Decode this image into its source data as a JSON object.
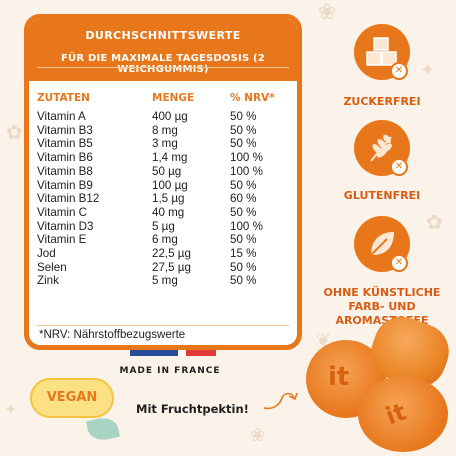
{
  "panel": {
    "title": "DURCHSCHNITTSWERTE",
    "subtitle": "FÜR DIE MAXIMALE TAGESDOSIS (2 WEICHGUMMIS)",
    "columns": [
      "ZUTATEN",
      "MENGE",
      "% NRV*"
    ],
    "rows": [
      [
        "Vitamin A",
        "400 µg",
        "50 %"
      ],
      [
        "Vitamin B3",
        "8 mg",
        "50 %"
      ],
      [
        "Vitamin B5",
        "3 mg",
        "50 %"
      ],
      [
        "Vitamin B6",
        "1,4 mg",
        "100 %"
      ],
      [
        "Vitamin B8",
        "50 µg",
        "100 %"
      ],
      [
        "Vitamin B9",
        "100 µg",
        "50 %"
      ],
      [
        "Vitamin B12",
        "1,5 µg",
        "60 %"
      ],
      [
        "Vitamin C",
        "40 mg",
        "50 %"
      ],
      [
        "Vitamin D3",
        "5 µg",
        "100 %"
      ],
      [
        "Vitamin E",
        "6 mg",
        "50 %"
      ],
      [
        "Jod",
        "22,5 µg",
        "15 %"
      ],
      [
        "Selen",
        "27,5 µg",
        "50 %"
      ],
      [
        "Zink",
        "5 mg",
        "50 %"
      ]
    ],
    "footnote": "*NRV: Nährstoffbezugswerte"
  },
  "made_in": "MADE IN FRANCE",
  "badges": [
    {
      "icon": "sugar-cubes-icon",
      "label": "ZUCKERFREI"
    },
    {
      "icon": "wheat-icon",
      "label": "GLUTENFREI"
    },
    {
      "icon": "leaf-icon",
      "label": "OHNE KÜNSTLICHE FARB- UND AROMASTOFFE"
    }
  ],
  "vegan_label": "VEGAN",
  "fruit_pectin": "Mit Fruchtpektin!",
  "gummy_mark": "it",
  "colors": {
    "accent": "#e8771c",
    "label_orange": "#d85d13",
    "background": "#fbf3ea",
    "flag_blue": "#2a4a9a",
    "flag_red": "#e23a3a",
    "vegan_yellow": "#fbe184"
  }
}
